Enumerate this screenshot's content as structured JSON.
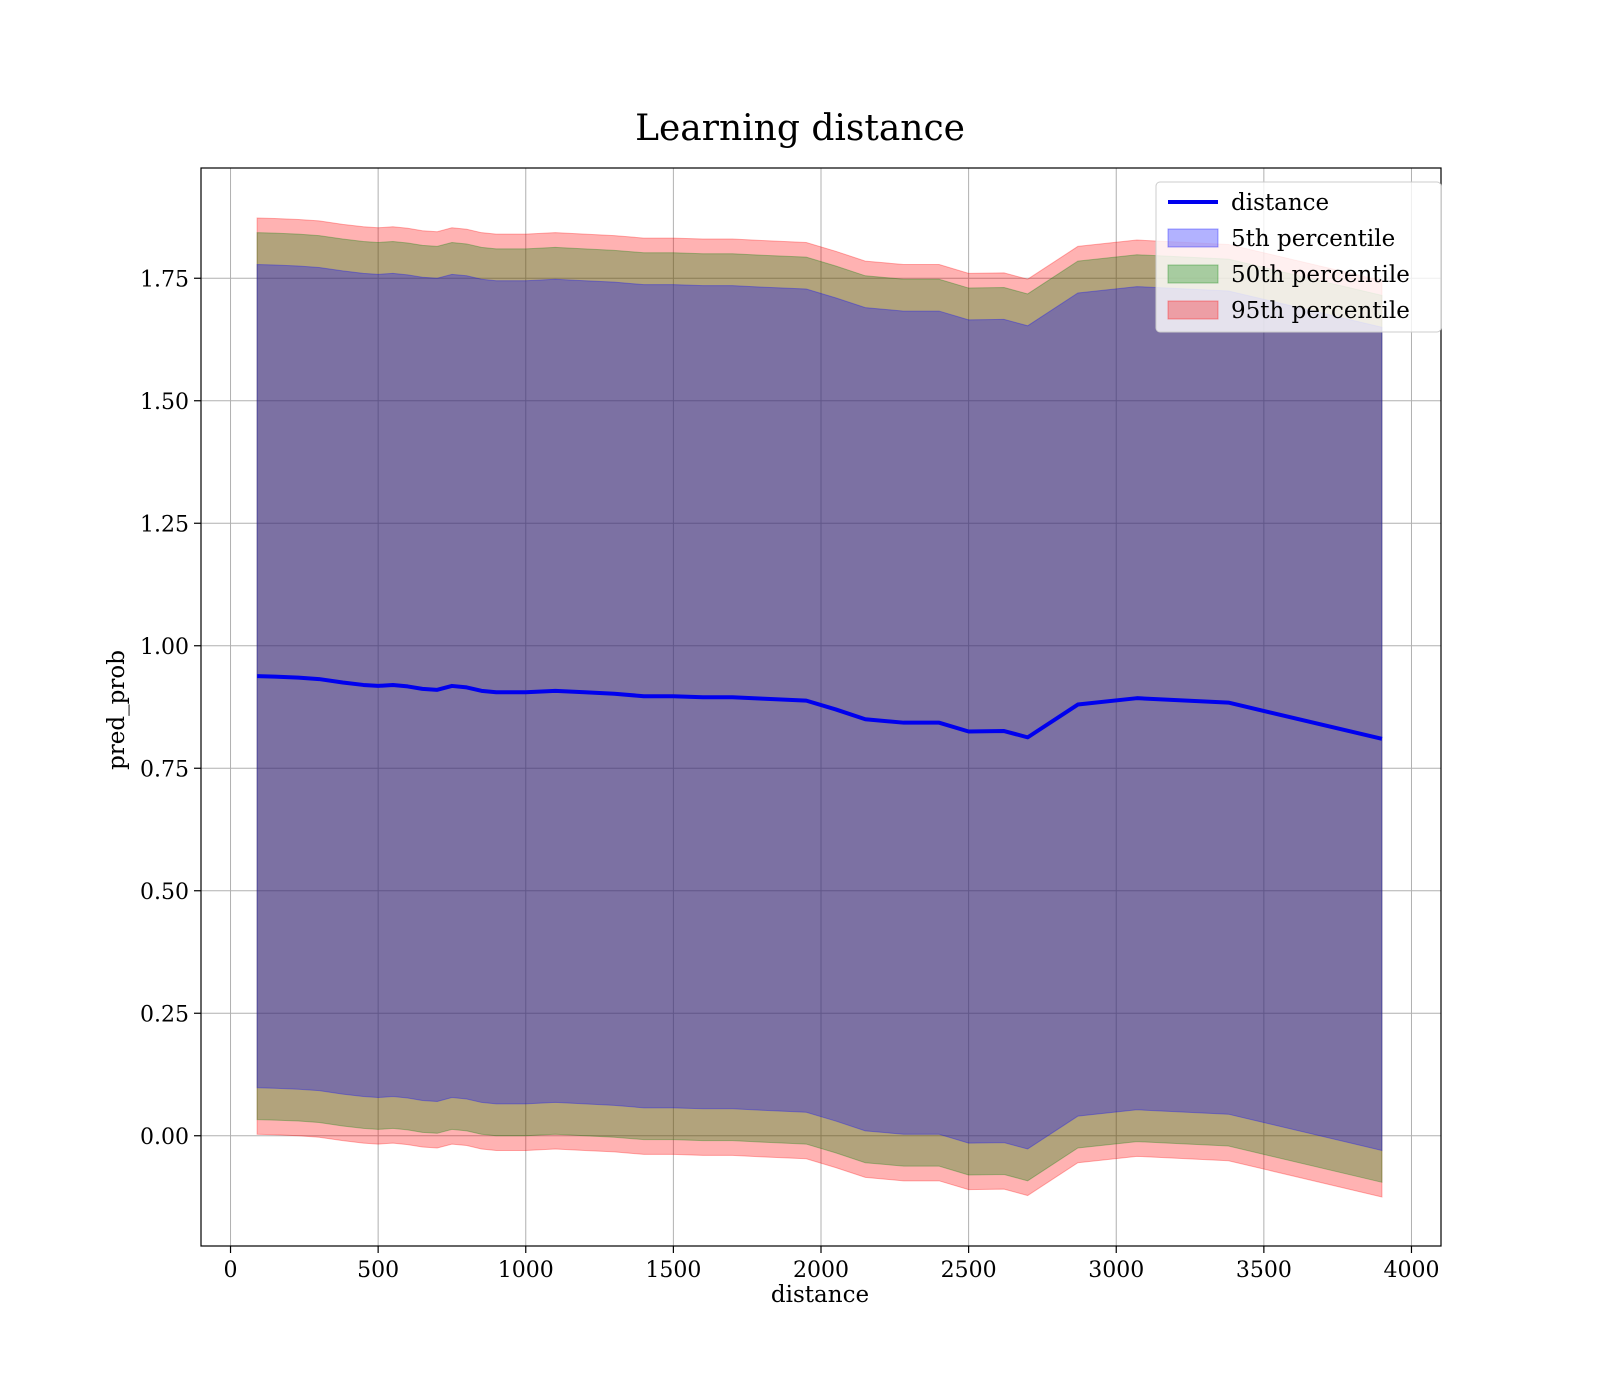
{
  "chart_data": {
    "type": "area",
    "title": "Learning distance",
    "xlabel": "distance",
    "ylabel": "pred_prob",
    "xlim": [
      -100,
      4100
    ],
    "ylim": [
      -0.225,
      1.975
    ],
    "xticks": [
      0,
      500,
      1000,
      1500,
      2000,
      2500,
      3000,
      3500,
      4000
    ],
    "yticks": [
      0.0,
      0.25,
      0.5,
      0.75,
      1.0,
      1.25,
      1.5,
      1.75
    ],
    "grid": true,
    "legend_position": "top-right",
    "x": [
      90,
      150,
      230,
      300,
      380,
      450,
      500,
      550,
      600,
      650,
      700,
      750,
      800,
      850,
      900,
      1000,
      1100,
      1200,
      1300,
      1400,
      1500,
      1600,
      1700,
      1800,
      1950,
      2050,
      2150,
      2280,
      2400,
      2500,
      2620,
      2700,
      2870,
      3070,
      3380,
      3900
    ],
    "series": [
      {
        "name": "distance",
        "kind": "line",
        "color": "#0000ee",
        "values": [
          0.938,
          0.937,
          0.935,
          0.932,
          0.925,
          0.92,
          0.918,
          0.92,
          0.917,
          0.912,
          0.91,
          0.918,
          0.915,
          0.908,
          0.905,
          0.905,
          0.908,
          0.905,
          0.902,
          0.897,
          0.897,
          0.895,
          0.895,
          0.892,
          0.888,
          0.87,
          0.85,
          0.843,
          0.843,
          0.825,
          0.826,
          0.813,
          0.88,
          0.893,
          0.884,
          0.81
        ]
      },
      {
        "name": "5th percentile",
        "kind": "band",
        "color": "#0000ff",
        "opacity": 0.3,
        "lower": [
          0.098,
          0.097,
          0.095,
          0.092,
          0.085,
          0.08,
          0.078,
          0.08,
          0.077,
          0.072,
          0.07,
          0.078,
          0.075,
          0.068,
          0.065,
          0.065,
          0.068,
          0.065,
          0.062,
          0.057,
          0.057,
          0.055,
          0.055,
          0.052,
          0.048,
          0.03,
          0.01,
          0.003,
          0.003,
          -0.015,
          -0.014,
          -0.027,
          0.04,
          0.053,
          0.044,
          -0.03
        ],
        "upper": [
          1.778,
          1.777,
          1.775,
          1.772,
          1.765,
          1.76,
          1.758,
          1.76,
          1.757,
          1.752,
          1.75,
          1.758,
          1.755,
          1.748,
          1.745,
          1.745,
          1.748,
          1.745,
          1.742,
          1.737,
          1.737,
          1.735,
          1.735,
          1.732,
          1.728,
          1.71,
          1.69,
          1.683,
          1.683,
          1.665,
          1.666,
          1.653,
          1.72,
          1.733,
          1.724,
          1.65
        ]
      },
      {
        "name": "50th percentile",
        "kind": "band",
        "color": "#008000",
        "opacity": 0.3,
        "lower": [
          0.033,
          0.032,
          0.03,
          0.027,
          0.02,
          0.015,
          0.013,
          0.015,
          0.012,
          0.007,
          0.005,
          0.013,
          0.01,
          0.003,
          0.0,
          0.0,
          0.003,
          0.0,
          -0.003,
          -0.008,
          -0.008,
          -0.01,
          -0.01,
          -0.013,
          -0.017,
          -0.035,
          -0.055,
          -0.062,
          -0.062,
          -0.08,
          -0.079,
          -0.092,
          -0.025,
          -0.012,
          -0.021,
          -0.095
        ],
        "upper": [
          1.843,
          1.842,
          1.84,
          1.837,
          1.83,
          1.825,
          1.823,
          1.825,
          1.822,
          1.817,
          1.815,
          1.823,
          1.82,
          1.813,
          1.81,
          1.81,
          1.813,
          1.81,
          1.807,
          1.802,
          1.802,
          1.8,
          1.8,
          1.797,
          1.793,
          1.775,
          1.755,
          1.748,
          1.748,
          1.73,
          1.731,
          1.718,
          1.785,
          1.798,
          1.789,
          1.715
        ]
      },
      {
        "name": "95th percentile",
        "kind": "band",
        "color": "#ff0000",
        "opacity": 0.3,
        "lower": [
          0.003,
          0.002,
          0.0,
          -0.003,
          -0.01,
          -0.015,
          -0.017,
          -0.015,
          -0.018,
          -0.023,
          -0.025,
          -0.017,
          -0.02,
          -0.027,
          -0.03,
          -0.03,
          -0.027,
          -0.03,
          -0.033,
          -0.038,
          -0.038,
          -0.04,
          -0.04,
          -0.043,
          -0.047,
          -0.065,
          -0.085,
          -0.092,
          -0.092,
          -0.11,
          -0.109,
          -0.122,
          -0.055,
          -0.042,
          -0.051,
          -0.125
        ],
        "upper": [
          1.873,
          1.872,
          1.87,
          1.867,
          1.86,
          1.855,
          1.853,
          1.855,
          1.852,
          1.847,
          1.845,
          1.853,
          1.85,
          1.843,
          1.84,
          1.84,
          1.843,
          1.84,
          1.837,
          1.832,
          1.832,
          1.83,
          1.83,
          1.827,
          1.823,
          1.805,
          1.785,
          1.778,
          1.778,
          1.76,
          1.761,
          1.748,
          1.815,
          1.828,
          1.819,
          1.745
        ]
      }
    ]
  }
}
